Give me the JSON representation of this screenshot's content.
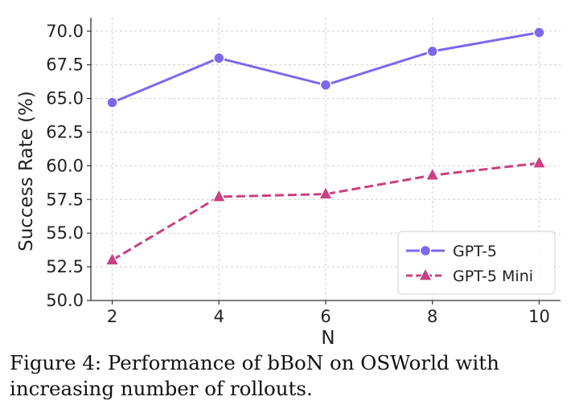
{
  "chart_data": {
    "type": "line",
    "x": [
      2,
      4,
      6,
      8,
      10
    ],
    "series": [
      {
        "name": "GPT-5",
        "values": [
          64.7,
          68.0,
          66.0,
          68.5,
          69.9
        ],
        "color": "#7b68ee",
        "marker": "circle",
        "linestyle": "solid"
      },
      {
        "name": "GPT-5 Mini",
        "values": [
          53.0,
          57.7,
          57.9,
          59.3,
          60.2
        ],
        "color": "#c94182",
        "marker": "triangle",
        "linestyle": "dashed"
      }
    ],
    "xlabel": "N",
    "ylabel": "Success Rate (%)",
    "xticks": [
      "2",
      "4",
      "6",
      "8",
      "10"
    ],
    "yticks": [
      "50.0",
      "52.5",
      "55.0",
      "57.5",
      "60.0",
      "62.5",
      "65.0",
      "67.5",
      "70.0"
    ],
    "ylim": [
      50.0,
      71.0
    ],
    "xlim": [
      1.6,
      10.4
    ],
    "grid": true,
    "legend_position": "bottom-right"
  },
  "caption": "Figure 4: Performance of bBoN on OSWorld with increasing number of rollouts."
}
